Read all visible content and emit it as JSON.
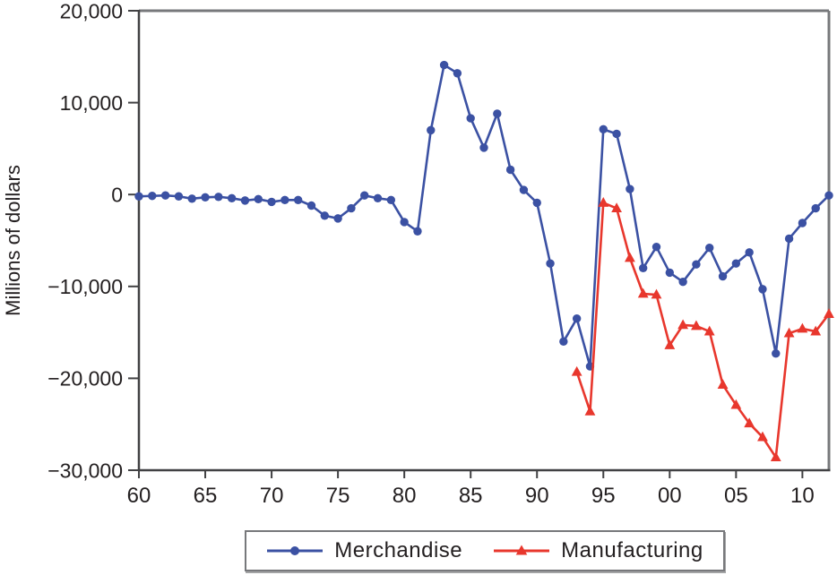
{
  "figure": {
    "kind": "static-line-chart-figure"
  },
  "colors": {
    "merchandise_blue": "#3b51a3",
    "manufacturing_red": "#e8372d",
    "frame_gray": "#77787b",
    "axis_dark": "#414143",
    "text_dark": "#231f20"
  },
  "legend": {
    "items": [
      {
        "label": "Merchandise",
        "marker": "circle",
        "color": "#3b51a3"
      },
      {
        "label": "Manufacturing",
        "marker": "triangle",
        "color": "#e8372d"
      }
    ]
  },
  "chart_data": {
    "type": "line",
    "title": "",
    "xlabel": "",
    "ylabel": "Millions of dollars",
    "grid": false,
    "legend_position": "bottom-center",
    "xlim": [
      1960,
      2012
    ],
    "ylim": [
      -30000,
      20000
    ],
    "x_ticks": {
      "values": [
        1960,
        1965,
        1970,
        1975,
        1980,
        1985,
        1990,
        1995,
        2000,
        2005,
        2010
      ],
      "labels": [
        "60",
        "65",
        "70",
        "75",
        "80",
        "85",
        "90",
        "95",
        "00",
        "05",
        "10"
      ]
    },
    "y_ticks": {
      "values": [
        20000,
        10000,
        0,
        -10000,
        -20000,
        -30000
      ],
      "labels": [
        "20,000",
        "10,000",
        "0",
        "−10,000",
        "−20,000",
        "−30,000"
      ]
    },
    "series": [
      {
        "name": "Merchandise",
        "color": "#3b51a3",
        "marker": "circle",
        "x": [
          1960,
          1961,
          1962,
          1963,
          1964,
          1965,
          1966,
          1967,
          1968,
          1969,
          1970,
          1971,
          1972,
          1973,
          1974,
          1975,
          1976,
          1977,
          1978,
          1979,
          1980,
          1981,
          1982,
          1983,
          1984,
          1985,
          1986,
          1987,
          1988,
          1989,
          1990,
          1991,
          1992,
          1993,
          1994,
          1995,
          1996,
          1997,
          1998,
          1999,
          2000,
          2001,
          2002,
          2003,
          2004,
          2005,
          2006,
          2007,
          2008,
          2009,
          2010,
          2011,
          2012
        ],
        "values": [
          -200,
          -150,
          -100,
          -200,
          -450,
          -300,
          -250,
          -400,
          -650,
          -500,
          -800,
          -600,
          -600,
          -1200,
          -2300,
          -2600,
          -1500,
          -100,
          -400,
          -600,
          -3000,
          -4000,
          7000,
          14100,
          13200,
          8300,
          5100,
          8800,
          2700,
          500,
          -900,
          -7500,
          -16000,
          -13500,
          -18700,
          7100,
          6600,
          600,
          -8000,
          -5700,
          -8500,
          -9500,
          -7600,
          -5800,
          -8900,
          -7500,
          -6300,
          -10300,
          -17300,
          -4800,
          -3100,
          -1500,
          -100
        ]
      },
      {
        "name": "Manufacturing",
        "color": "#e8372d",
        "marker": "triangle",
        "x": [
          1993,
          1994,
          1995,
          1996,
          1997,
          1998,
          1999,
          2000,
          2001,
          2002,
          2003,
          2004,
          2005,
          2006,
          2007,
          2008,
          2009,
          2010,
          2011,
          2012
        ],
        "values": [
          -19300,
          -23600,
          -900,
          -1500,
          -6900,
          -10800,
          -10900,
          -16400,
          -14200,
          -14300,
          -14900,
          -20700,
          -22900,
          -24900,
          -26400,
          -28600,
          -15100,
          -14600,
          -14900,
          -13000
        ]
      }
    ]
  }
}
